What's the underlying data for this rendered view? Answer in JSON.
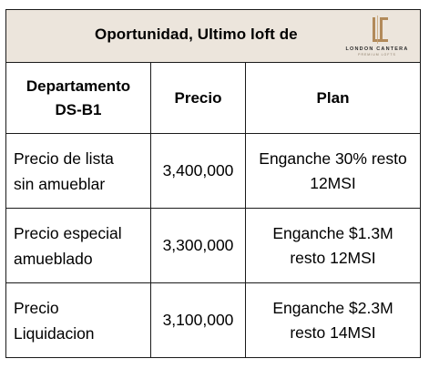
{
  "title": "Oportunidad, Ultimo loft de",
  "logo": {
    "icon": "lc-monogram-icon",
    "name": "LONDON CANTERA",
    "tagline": "PREMIUM LOFTS",
    "color": "#b28a5a"
  },
  "header": {
    "col1_line1": "Departamento",
    "col1_line2": "DS-B1",
    "col2": "Precio",
    "col3": "Plan"
  },
  "rows": [
    {
      "label_line1": "Precio de lista",
      "label_line2": "sin amueblar",
      "price": "3,400,000",
      "plan_line1": "Enganche 30% resto",
      "plan_line2": "12MSI"
    },
    {
      "label_line1": "Precio especial",
      "label_line2": "amueblado",
      "price": "3,300,000",
      "plan_line1": "Enganche $1.3M",
      "plan_line2": "resto 12MSI"
    },
    {
      "label_line1": "Precio",
      "label_line2": "Liquidacion",
      "price": "3,100,000",
      "plan_line1": "Enganche $2.3M",
      "plan_line2": "resto 14MSI"
    }
  ],
  "colors": {
    "title_background": "#ece5dc",
    "border": "#1a1a1a"
  }
}
